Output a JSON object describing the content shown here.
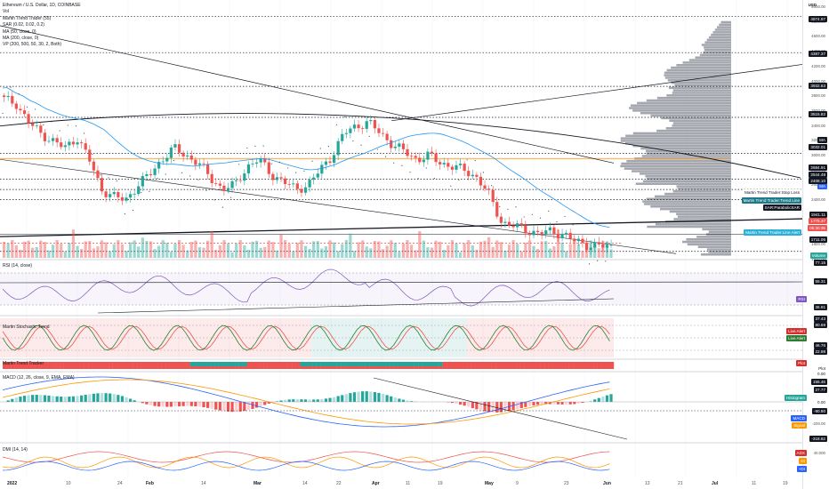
{
  "legend": {
    "symbol": "Ethereum / U.S. Dollar, 1D, COINBASE",
    "indicators": [
      "Vol",
      "Martin Trend Trader (55)",
      "SAR (0.02, 0.02, 0.2)",
      "MA (50, close, 0)",
      "MA (200, close, 0)",
      "VP (200, 500, 50, 30, 2, Both)"
    ]
  },
  "currency": "USD",
  "pane_titles": {
    "rsi": "RSI (14, close)",
    "stoch": "Martin Stochastic Trend",
    "trendbar": "Martin Trend Tracker",
    "macd": "MACD (12, 26, close, 9, EMA, EMA)",
    "dmi": "DMI (14, 14)"
  },
  "price_axis_ticks": [
    "5000.00",
    "4800.00",
    "4600.00",
    "4400.00",
    "4200.00",
    "4000.00",
    "3800.00",
    "3600.00",
    "3400.00",
    "3200.00",
    "3000.00",
    "2800.00",
    "2600.00",
    "2400.00",
    "2200.00",
    "2000.00",
    "1800.00",
    "1600.00"
  ],
  "price_tags": [
    {
      "text": "4874.97",
      "color": "#131722"
    },
    {
      "text": "4387.37",
      "color": "#131722"
    },
    {
      "text": "3932.63",
      "color": "#131722"
    },
    {
      "text": "3515.82",
      "color": "#131722"
    },
    {
      "text": "MA",
      "color": "#131722"
    },
    {
      "text": "3032.01",
      "color": "#131722"
    },
    {
      "text": "2684.91",
      "color": "#131722"
    },
    {
      "text": "2544.49",
      "color": "#131722"
    },
    {
      "text": "MA",
      "color": "#2962ff"
    },
    {
      "text": "2408.10",
      "color": "#131722"
    },
    {
      "text": "1941.11",
      "color": "#131722"
    },
    {
      "text": "1775.37",
      "color": "#ef5350"
    },
    {
      "text": "05:30:35",
      "color": "#ef5350"
    },
    {
      "text": "1711.06",
      "color": "#131722"
    },
    {
      "text": "Volume",
      "color": "#26a69a"
    },
    {
      "text": "77.15",
      "color": "#131722"
    }
  ],
  "chart_notes": [
    {
      "text": "Martin Trend Trader:Stop Loss",
      "color": "#131722",
      "bg": "#ffffff"
    },
    {
      "text": "Martin Trend Trader:Trend Line",
      "color": "#ffffff",
      "bg": "#1a7a8c"
    },
    {
      "text": "SAR:ParabolicSAR",
      "color": "#ffffff",
      "bg": "#131722"
    },
    {
      "text": "Martin Trend Trader:Line Alert",
      "color": "#ffffff",
      "bg": "#2ab0d8"
    }
  ],
  "rsi_tags": [
    {
      "text": "55.31",
      "color": "#131722"
    },
    {
      "text": "RSI",
      "color": "#7e57c2"
    },
    {
      "text": "36.91",
      "color": "#131722"
    }
  ],
  "stoch_tags": [
    {
      "text": "37.43",
      "color": "#131722"
    },
    {
      "text": "80.69",
      "color": "#131722"
    },
    {
      "text": "Live Alert",
      "color": "#d32f2f"
    },
    {
      "text": "Live Alert",
      "color": "#2e7d32"
    },
    {
      "text": "46.76",
      "color": "#131722"
    },
    {
      "text": "22.98",
      "color": "#131722"
    }
  ],
  "trend_tags": [
    {
      "text": "Plot",
      "color": "#d32f2f"
    },
    {
      "text": "Plot",
      "color": "#ffffff"
    },
    {
      "text": "0.00",
      "color": "#ffffff"
    }
  ],
  "macd_tags": [
    {
      "text": "155.46",
      "color": "#131722"
    },
    {
      "text": "27.77",
      "color": "#131722"
    },
    {
      "text": "Histogram",
      "color": "#26a69a"
    },
    {
      "text": "0.00",
      "color": "#ffffff"
    },
    {
      "text": "-90.80",
      "color": "#131722"
    },
    {
      "text": "MACD",
      "color": "#2962ff"
    },
    {
      "text": "Signal",
      "color": "#ff9800"
    },
    {
      "text": "-318.82",
      "color": "#131722"
    }
  ],
  "macd_axis": [
    "-200.00"
  ],
  "dmi_axis": [
    "40.000"
  ],
  "dmi_tags": [
    {
      "text": "ADX",
      "color": "#d32f2f"
    },
    {
      "text": "DI",
      "color": "#ff9800"
    },
    {
      "text": "+DI",
      "color": "#2962ff"
    }
  ],
  "x_labels": [
    {
      "text": "2022",
      "bold": true
    },
    {
      "text": "10",
      "bold": false
    },
    {
      "text": "24",
      "bold": false
    },
    {
      "text": "Feb",
      "bold": true
    },
    {
      "text": "14",
      "bold": false
    },
    {
      "text": "Mar",
      "bold": true
    },
    {
      "text": "14",
      "bold": false
    },
    {
      "text": "22",
      "bold": false
    },
    {
      "text": "Apr",
      "bold": true
    },
    {
      "text": "11",
      "bold": false
    },
    {
      "text": "19",
      "bold": false
    },
    {
      "text": "May",
      "bold": true
    },
    {
      "text": "9",
      "bold": false
    },
    {
      "text": "23",
      "bold": false
    },
    {
      "text": "Jun",
      "bold": true
    },
    {
      "text": "13",
      "bold": false
    },
    {
      "text": "21",
      "bold": false
    },
    {
      "text": "Jul",
      "bold": true
    },
    {
      "text": "11",
      "bold": false
    },
    {
      "text": "19",
      "bold": false
    }
  ],
  "chart_data": {
    "type": "candlestick",
    "symbol": "ETHUSD",
    "timeframe": "1D",
    "dates": [
      "2022-01-01",
      "2022-06-04"
    ],
    "approx_close_path": [
      3760,
      3700,
      3450,
      3300,
      3200,
      3100,
      3250,
      2950,
      2550,
      2450,
      2400,
      2600,
      2750,
      2950,
      3100,
      3000,
      2900,
      2700,
      2550,
      2600,
      2850,
      2950,
      2750,
      2650,
      2550,
      2600,
      2800,
      3000,
      3300,
      3400,
      3450,
      3300,
      3150,
      3050,
      2950,
      3000,
      2900,
      2850,
      2800,
      2700,
      2450,
      2100,
      2050,
      2000,
      1950,
      1980,
      1950,
      1850,
      1800,
      1780,
      1775
    ],
    "price_range": [
      1600,
      5000
    ],
    "last_price": 1775.37
  },
  "colors": {
    "up": "#26a69a",
    "down": "#ef5350",
    "ma50": "#2196f3",
    "ma200": "#131722",
    "rsi": "#7e57c2",
    "macd": "#2962ff",
    "signal": "#ff9800"
  }
}
